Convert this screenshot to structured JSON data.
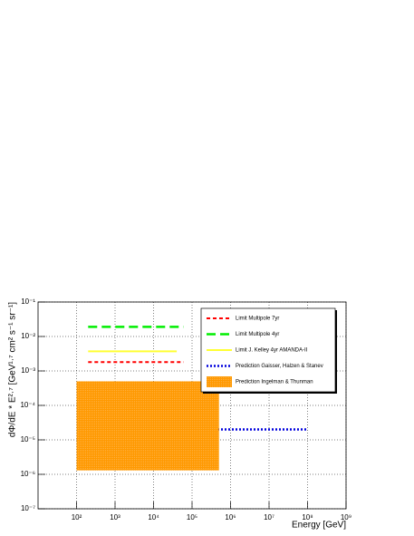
{
  "chart_data": {
    "type": "line",
    "x_label": "Energy [GeV]",
    "y_label": "dΦ/dE * E²·⁷  [GeV¹·⁷ cm² s⁻¹ sr⁻¹]",
    "xlog": true,
    "ylog": true,
    "grid": true,
    "legend": "top-right",
    "xlim": [
      10,
      1000000000
    ],
    "ylim": [
      1e-07,
      0.1
    ],
    "xticks": [
      {
        "value": 100,
        "label": "10²"
      },
      {
        "value": 1000,
        "label": "10³"
      },
      {
        "value": 10000,
        "label": "10⁴"
      },
      {
        "value": 100000,
        "label": "10⁵"
      },
      {
        "value": 1000000,
        "label": "10⁶"
      },
      {
        "value": 10000000,
        "label": "10⁷"
      },
      {
        "value": 100000000,
        "label": "10⁸"
      },
      {
        "value": 1000000000,
        "label": "10⁹"
      }
    ],
    "yticks": [
      {
        "value": 1e-07,
        "label": "10⁻⁷"
      },
      {
        "value": 1e-06,
        "label": "10⁻⁶"
      },
      {
        "value": 1e-05,
        "label": "10⁻⁵"
      },
      {
        "value": 0.0001,
        "label": "10⁻⁴"
      },
      {
        "value": 0.001,
        "label": "10⁻³"
      },
      {
        "value": 0.01,
        "label": "10⁻²"
      },
      {
        "value": 0.1,
        "label": "10⁻¹"
      }
    ],
    "series": [
      {
        "name": "Limit Multipole 7yr",
        "color": "#ff0000",
        "style": "dashed",
        "x": [
          200,
          60000
        ],
        "values": [
          0.0018,
          0.0018
        ]
      },
      {
        "name": "Limit Multipole 4yr",
        "color": "#00ee00",
        "style": "long-dashed",
        "x": [
          200,
          60000
        ],
        "values": [
          0.019,
          0.019
        ]
      },
      {
        "name": "Limit J. Kelley 4yr AMANDA-II",
        "color": "#ffff33",
        "style": "solid",
        "x": [
          200,
          40000
        ],
        "values": [
          0.0037,
          0.0037
        ]
      },
      {
        "name": "Prediction Gaisser, Halzen & Stanev",
        "color": "#0000dd",
        "style": "dotted",
        "x": [
          100000,
          100000000
        ],
        "values": [
          2e-05,
          2e-05
        ]
      },
      {
        "name": "Prediction Ingelman & Thunman",
        "color": "#ff9900",
        "style": "box",
        "x": [
          100,
          500000
        ],
        "values": [
          1.3e-06,
          0.0005
        ]
      }
    ]
  }
}
